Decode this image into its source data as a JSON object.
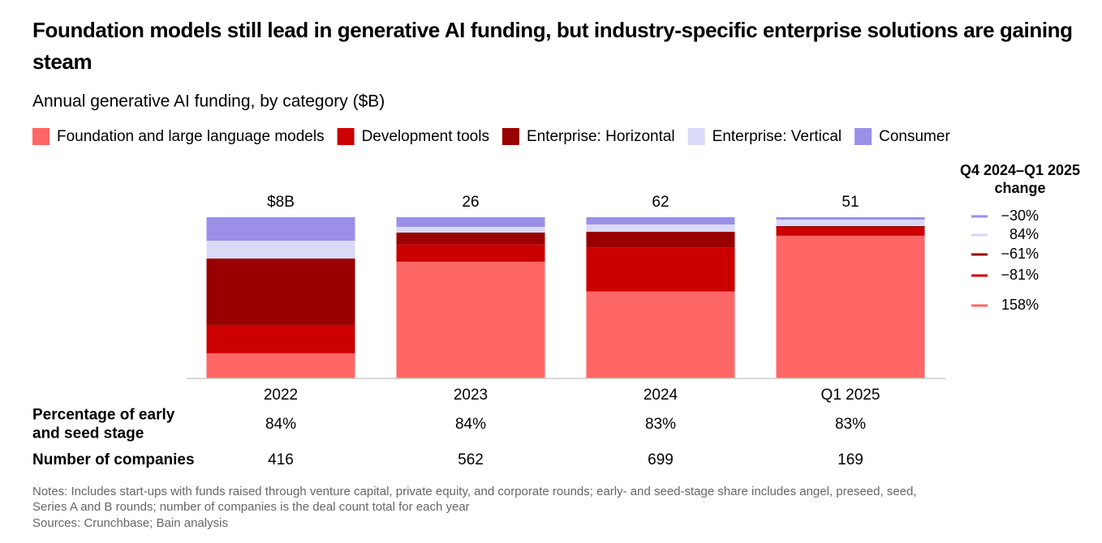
{
  "chart_data": {
    "type": "stacked_bar_100",
    "title": "Foundation models still lead in generative AI funding, but industry-specific enterprise solutions are gaining steam",
    "subtitle": "Annual generative AI funding, by category ($B)",
    "categories": [
      "2022",
      "2023",
      "2024",
      "Q1 2025"
    ],
    "ylim": [
      0,
      100
    ],
    "totals": [
      8,
      26,
      62,
      51
    ],
    "total_labels": [
      "$8B",
      "26",
      "62",
      "51"
    ],
    "series": [
      {
        "name": "Foundation and large language models",
        "color": "#ff6666",
        "values": [
          15.6,
          72.4,
          54,
          88.5
        ],
        "change": 158,
        "change_label": "158%"
      },
      {
        "name": "Development tools",
        "color": "#cc0000",
        "values": [
          17.6,
          10.6,
          27,
          5
        ],
        "change": -81,
        "change_label": "−81%"
      },
      {
        "name": "Enterprise: Horizontal",
        "color": "#990000",
        "values": [
          41.2,
          7.5,
          10,
          1
        ],
        "change": -61,
        "change_label": "−61%"
      },
      {
        "name": "Enterprise: Vertical",
        "color": "#d9d9f8",
        "values": [
          11,
          3.5,
          4.5,
          4
        ],
        "change": 84,
        "change_label": "84%"
      },
      {
        "name": "Consumer",
        "color": "#9b8fe8",
        "values": [
          14.6,
          6,
          4.5,
          1.5
        ],
        "change": -30,
        "change_label": "−30%"
      }
    ],
    "change_title": [
      "Q4 2024–Q1 2025",
      "change"
    ],
    "rows": [
      {
        "label": [
          "Percentage of early",
          "and seed stage"
        ],
        "values": [
          84,
          84,
          83,
          83
        ],
        "value_labels": [
          "84%",
          "84%",
          "83%",
          "83%"
        ]
      },
      {
        "label": [
          "Number of companies"
        ],
        "values": [
          416,
          562,
          699,
          169
        ]
      }
    ],
    "notes": [
      "Notes: Includes start-ups with funds raised through venture capital, private equity, and corporate rounds; early- and seed-stage share includes angel, preseed, seed,",
      "Series A and B rounds; number of companies is the deal count total for each year",
      "Sources: Crunchbase; Bain analysis"
    ]
  }
}
